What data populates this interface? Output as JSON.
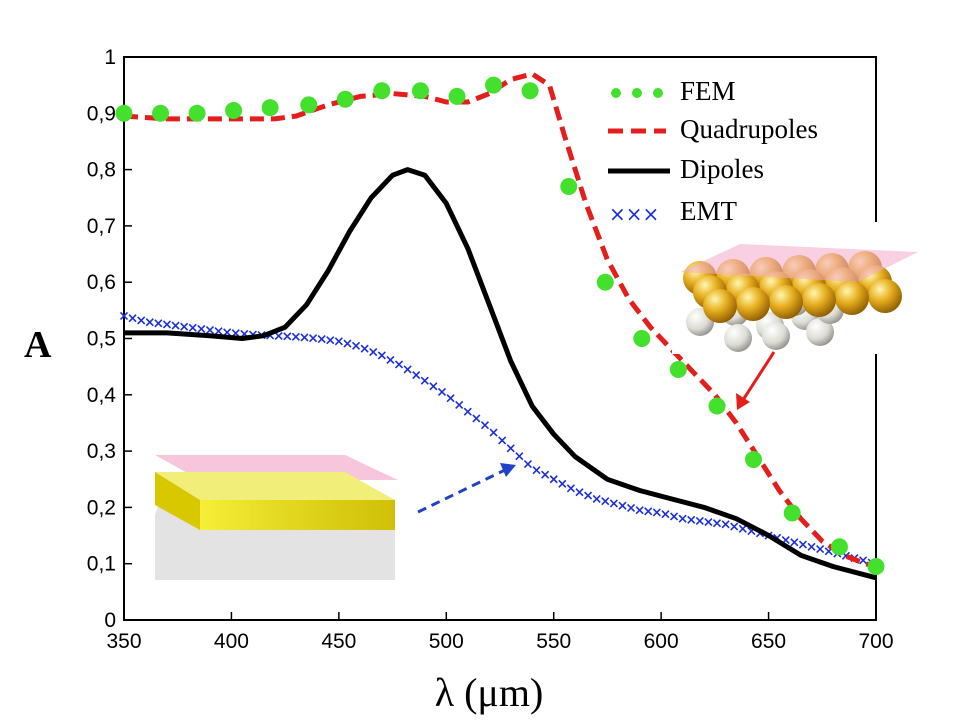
{
  "chart_data": {
    "type": "line",
    "xlabel": "λ (μm)",
    "ylabel": "A",
    "xlim": [
      350,
      700
    ],
    "ylim": [
      0,
      1
    ],
    "x_ticks": [
      "350",
      "400",
      "450",
      "500",
      "550",
      "600",
      "650",
      "700"
    ],
    "y_ticks": [
      "0",
      "0,1",
      "0,2",
      "0,3",
      "0,4",
      "0,5",
      "0,6",
      "0,7",
      "0,8",
      "0,9",
      "1"
    ],
    "legend_position": "top-right",
    "series": [
      {
        "name": "FEM",
        "style": "dots",
        "color": "#44e02e",
        "points": [
          [
            350,
            0.9
          ],
          [
            367,
            0.9
          ],
          [
            384,
            0.9
          ],
          [
            401,
            0.905
          ],
          [
            418,
            0.91
          ],
          [
            436,
            0.915
          ],
          [
            453,
            0.925
          ],
          [
            470,
            0.94
          ],
          [
            488,
            0.94
          ],
          [
            505,
            0.93
          ],
          [
            522,
            0.95
          ],
          [
            539,
            0.94
          ],
          [
            557,
            0.77
          ],
          [
            574,
            0.6
          ],
          [
            591,
            0.5
          ],
          [
            608,
            0.445
          ],
          [
            626,
            0.38
          ],
          [
            643,
            0.285
          ],
          [
            661,
            0.19
          ],
          [
            683,
            0.13
          ],
          [
            700,
            0.095
          ]
        ]
      },
      {
        "name": "Quadrupoles",
        "style": "dashed",
        "color": "#e41d1d",
        "points": [
          [
            350,
            0.895
          ],
          [
            370,
            0.89
          ],
          [
            390,
            0.89
          ],
          [
            410,
            0.89
          ],
          [
            420,
            0.89
          ],
          [
            430,
            0.895
          ],
          [
            445,
            0.915
          ],
          [
            460,
            0.93
          ],
          [
            475,
            0.935
          ],
          [
            490,
            0.93
          ],
          [
            500,
            0.92
          ],
          [
            510,
            0.92
          ],
          [
            520,
            0.935
          ],
          [
            530,
            0.96
          ],
          [
            540,
            0.97
          ],
          [
            548,
            0.95
          ],
          [
            555,
            0.86
          ],
          [
            565,
            0.74
          ],
          [
            575,
            0.64
          ],
          [
            585,
            0.57
          ],
          [
            595,
            0.52
          ],
          [
            605,
            0.48
          ],
          [
            615,
            0.44
          ],
          [
            625,
            0.4
          ],
          [
            635,
            0.35
          ],
          [
            645,
            0.29
          ],
          [
            655,
            0.23
          ],
          [
            665,
            0.18
          ],
          [
            675,
            0.14
          ],
          [
            685,
            0.115
          ],
          [
            695,
            0.1
          ],
          [
            700,
            0.095
          ]
        ]
      },
      {
        "name": "Dipoles",
        "style": "solid",
        "color": "#000000",
        "points": [
          [
            350,
            0.51
          ],
          [
            370,
            0.51
          ],
          [
            390,
            0.505
          ],
          [
            405,
            0.5
          ],
          [
            415,
            0.505
          ],
          [
            425,
            0.52
          ],
          [
            435,
            0.56
          ],
          [
            445,
            0.62
          ],
          [
            455,
            0.69
          ],
          [
            465,
            0.75
          ],
          [
            475,
            0.79
          ],
          [
            482,
            0.8
          ],
          [
            490,
            0.79
          ],
          [
            500,
            0.74
          ],
          [
            510,
            0.66
          ],
          [
            520,
            0.56
          ],
          [
            530,
            0.46
          ],
          [
            540,
            0.38
          ],
          [
            550,
            0.33
          ],
          [
            560,
            0.29
          ],
          [
            575,
            0.25
          ],
          [
            590,
            0.23
          ],
          [
            605,
            0.215
          ],
          [
            620,
            0.2
          ],
          [
            635,
            0.18
          ],
          [
            650,
            0.15
          ],
          [
            665,
            0.115
          ],
          [
            680,
            0.095
          ],
          [
            700,
            0.075
          ]
        ]
      },
      {
        "name": "EMT",
        "style": "crosses",
        "color": "#1c2fd8",
        "points": [
          [
            350,
            0.54
          ],
          [
            360,
            0.53
          ],
          [
            370,
            0.525
          ],
          [
            380,
            0.52
          ],
          [
            390,
            0.515
          ],
          [
            400,
            0.51
          ],
          [
            410,
            0.507
          ],
          [
            420,
            0.505
          ],
          [
            430,
            0.503
          ],
          [
            440,
            0.5
          ],
          [
            450,
            0.495
          ],
          [
            460,
            0.485
          ],
          [
            470,
            0.47
          ],
          [
            480,
            0.45
          ],
          [
            490,
            0.425
          ],
          [
            500,
            0.4
          ],
          [
            510,
            0.37
          ],
          [
            520,
            0.34
          ],
          [
            530,
            0.305
          ],
          [
            540,
            0.27
          ],
          [
            550,
            0.25
          ],
          [
            560,
            0.23
          ],
          [
            570,
            0.215
          ],
          [
            580,
            0.205
          ],
          [
            590,
            0.195
          ],
          [
            600,
            0.19
          ],
          [
            610,
            0.18
          ],
          [
            620,
            0.175
          ],
          [
            630,
            0.17
          ],
          [
            640,
            0.16
          ],
          [
            650,
            0.15
          ],
          [
            660,
            0.14
          ],
          [
            670,
            0.13
          ],
          [
            680,
            0.12
          ],
          [
            690,
            0.11
          ],
          [
            700,
            0.1
          ]
        ]
      }
    ]
  }
}
